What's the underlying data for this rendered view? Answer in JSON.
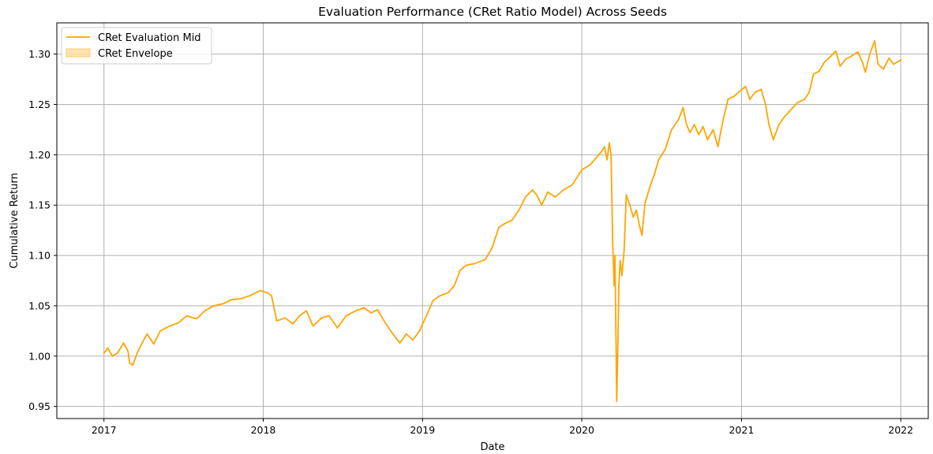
{
  "chart_data": {
    "type": "line",
    "title": "Evaluation Performance (CRet Ratio Model) Across Seeds",
    "xlabel": "Date",
    "ylabel": "Cumulative Return",
    "grid": true,
    "legend_position": "top-left",
    "x_ticks": [
      "2017",
      "2018",
      "2019",
      "2020",
      "2021",
      "2022"
    ],
    "y_ticks": [
      "0.95",
      "1.00",
      "1.05",
      "1.10",
      "1.15",
      "1.20",
      "1.25",
      "1.30"
    ],
    "xlim": [
      "2016-09-15",
      "2022-03-05"
    ],
    "ylim": [
      0.938,
      1.331
    ],
    "legend": [
      {
        "label": "CRet Evaluation Mid",
        "kind": "line",
        "color": "#FFA500"
      },
      {
        "label": "CRet Envelope",
        "kind": "patch",
        "color": "#FFA500"
      }
    ],
    "series": [
      {
        "name": "CRet Evaluation Mid",
        "color": "#FFA500",
        "points": [
          [
            "2017-01-01",
            1.003
          ],
          [
            "2017-01-10",
            1.008
          ],
          [
            "2017-01-20",
            1.0
          ],
          [
            "2017-02-01",
            1.003
          ],
          [
            "2017-02-15",
            1.013
          ],
          [
            "2017-02-25",
            1.005
          ],
          [
            "2017-03-01",
            0.993
          ],
          [
            "2017-03-08",
            0.991
          ],
          [
            "2017-03-20",
            1.005
          ],
          [
            "2017-04-01",
            1.015
          ],
          [
            "2017-04-10",
            1.022
          ],
          [
            "2017-04-25",
            1.012
          ],
          [
            "2017-05-10",
            1.025
          ],
          [
            "2017-06-01",
            1.03
          ],
          [
            "2017-06-20",
            1.033
          ],
          [
            "2017-07-10",
            1.04
          ],
          [
            "2017-08-01",
            1.037
          ],
          [
            "2017-08-20",
            1.045
          ],
          [
            "2017-09-10",
            1.05
          ],
          [
            "2017-10-01",
            1.052
          ],
          [
            "2017-10-20",
            1.056
          ],
          [
            "2017-11-10",
            1.057
          ],
          [
            "2017-12-01",
            1.06
          ],
          [
            "2017-12-25",
            1.065
          ],
          [
            "2018-01-10",
            1.063
          ],
          [
            "2018-01-20",
            1.06
          ],
          [
            "2018-02-01",
            1.035
          ],
          [
            "2018-02-20",
            1.038
          ],
          [
            "2018-03-10",
            1.032
          ],
          [
            "2018-03-25",
            1.04
          ],
          [
            "2018-04-10",
            1.045
          ],
          [
            "2018-04-25",
            1.03
          ],
          [
            "2018-05-15",
            1.038
          ],
          [
            "2018-06-01",
            1.04
          ],
          [
            "2018-06-20",
            1.028
          ],
          [
            "2018-07-10",
            1.04
          ],
          [
            "2018-08-01",
            1.045
          ],
          [
            "2018-08-20",
            1.048
          ],
          [
            "2018-09-05",
            1.043
          ],
          [
            "2018-09-20",
            1.046
          ],
          [
            "2018-10-05",
            1.035
          ],
          [
            "2018-10-20",
            1.025
          ],
          [
            "2018-11-10",
            1.013
          ],
          [
            "2018-11-25",
            1.022
          ],
          [
            "2018-12-10",
            1.016
          ],
          [
            "2018-12-25",
            1.025
          ],
          [
            "2019-01-10",
            1.04
          ],
          [
            "2019-01-25",
            1.055
          ],
          [
            "2019-02-10",
            1.06
          ],
          [
            "2019-03-01",
            1.063
          ],
          [
            "2019-03-15",
            1.07
          ],
          [
            "2019-03-28",
            1.085
          ],
          [
            "2019-04-10",
            1.09
          ],
          [
            "2019-05-01",
            1.092
          ],
          [
            "2019-05-25",
            1.096
          ],
          [
            "2019-06-10",
            1.108
          ],
          [
            "2019-06-25",
            1.128
          ],
          [
            "2019-07-10",
            1.132
          ],
          [
            "2019-07-25",
            1.135
          ],
          [
            "2019-08-10",
            1.145
          ],
          [
            "2019-08-25",
            1.158
          ],
          [
            "2019-09-10",
            1.165
          ],
          [
            "2019-09-20",
            1.16
          ],
          [
            "2019-10-01",
            1.15
          ],
          [
            "2019-10-15",
            1.163
          ],
          [
            "2019-11-01",
            1.158
          ],
          [
            "2019-11-20",
            1.165
          ],
          [
            "2019-12-10",
            1.17
          ],
          [
            "2020-01-01",
            1.185
          ],
          [
            "2020-01-20",
            1.19
          ],
          [
            "2020-02-05",
            1.198
          ],
          [
            "2020-02-15",
            1.203
          ],
          [
            "2020-02-22",
            1.208
          ],
          [
            "2020-02-28",
            1.195
          ],
          [
            "2020-03-04",
            1.212
          ],
          [
            "2020-03-08",
            1.2
          ],
          [
            "2020-03-12",
            1.11
          ],
          [
            "2020-03-15",
            1.07
          ],
          [
            "2020-03-17",
            1.1
          ],
          [
            "2020-03-19",
            1.03
          ],
          [
            "2020-03-21",
            0.955
          ],
          [
            "2020-03-23",
            0.995
          ],
          [
            "2020-03-26",
            1.07
          ],
          [
            "2020-03-29",
            1.095
          ],
          [
            "2020-04-02",
            1.08
          ],
          [
            "2020-04-07",
            1.105
          ],
          [
            "2020-04-12",
            1.16
          ],
          [
            "2020-04-20",
            1.15
          ],
          [
            "2020-04-28",
            1.138
          ],
          [
            "2020-05-05",
            1.145
          ],
          [
            "2020-05-12",
            1.13
          ],
          [
            "2020-05-18",
            1.12
          ],
          [
            "2020-05-25",
            1.152
          ],
          [
            "2020-06-05",
            1.168
          ],
          [
            "2020-06-15",
            1.18
          ],
          [
            "2020-06-25",
            1.195
          ],
          [
            "2020-07-10",
            1.205
          ],
          [
            "2020-07-25",
            1.225
          ],
          [
            "2020-08-10",
            1.235
          ],
          [
            "2020-08-20",
            1.247
          ],
          [
            "2020-08-28",
            1.23
          ],
          [
            "2020-09-05",
            1.222
          ],
          [
            "2020-09-15",
            1.23
          ],
          [
            "2020-09-25",
            1.22
          ],
          [
            "2020-10-05",
            1.228
          ],
          [
            "2020-10-15",
            1.215
          ],
          [
            "2020-10-28",
            1.225
          ],
          [
            "2020-11-08",
            1.208
          ],
          [
            "2020-11-20",
            1.235
          ],
          [
            "2020-12-01",
            1.255
          ],
          [
            "2020-12-15",
            1.258
          ],
          [
            "2020-12-28",
            1.263
          ],
          [
            "2021-01-10",
            1.268
          ],
          [
            "2021-01-20",
            1.255
          ],
          [
            "2021-02-01",
            1.262
          ],
          [
            "2021-02-15",
            1.265
          ],
          [
            "2021-02-25",
            1.25
          ],
          [
            "2021-03-05",
            1.23
          ],
          [
            "2021-03-15",
            1.215
          ],
          [
            "2021-03-28",
            1.23
          ],
          [
            "2021-04-10",
            1.238
          ],
          [
            "2021-04-25",
            1.245
          ],
          [
            "2021-05-10",
            1.252
          ],
          [
            "2021-05-25",
            1.255
          ],
          [
            "2021-06-05",
            1.262
          ],
          [
            "2021-06-15",
            1.28
          ],
          [
            "2021-06-28",
            1.283
          ],
          [
            "2021-07-10",
            1.292
          ],
          [
            "2021-07-25",
            1.298
          ],
          [
            "2021-08-05",
            1.303
          ],
          [
            "2021-08-15",
            1.288
          ],
          [
            "2021-08-28",
            1.295
          ],
          [
            "2021-09-10",
            1.298
          ],
          [
            "2021-09-25",
            1.302
          ],
          [
            "2021-10-05",
            1.292
          ],
          [
            "2021-10-12",
            1.282
          ],
          [
            "2021-10-22",
            1.3
          ],
          [
            "2021-11-02",
            1.313
          ],
          [
            "2021-11-10",
            1.29
          ],
          [
            "2021-11-22",
            1.285
          ],
          [
            "2021-12-05",
            1.296
          ],
          [
            "2021-12-15",
            1.29
          ],
          [
            "2022-01-01",
            1.294
          ]
        ]
      }
    ]
  }
}
